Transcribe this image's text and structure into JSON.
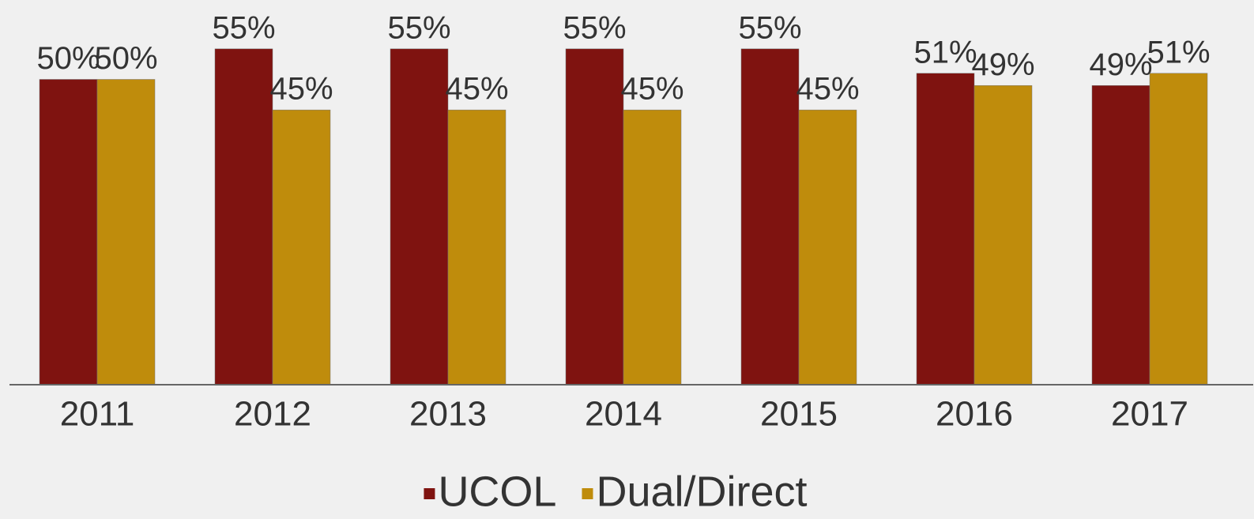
{
  "chart_data": {
    "type": "bar",
    "categories": [
      "2011",
      "2012",
      "2013",
      "2014",
      "2015",
      "2016",
      "2017"
    ],
    "series": [
      {
        "name": "UCOL",
        "color": "#7f1310",
        "values": [
          50,
          55,
          55,
          55,
          55,
          51,
          49
        ],
        "value_labels": [
          "50%",
          "55%",
          "55%",
          "55%",
          "55%",
          "51%",
          "49%"
        ]
      },
      {
        "name": "Dual/Direct",
        "color": "#bf8c0c",
        "values": [
          50,
          45,
          45,
          45,
          45,
          49,
          51
        ],
        "value_labels": [
          "50%",
          "45%",
          "45%",
          "45%",
          "45%",
          "49%",
          "51%"
        ]
      }
    ],
    "ylim": [
      0,
      63
    ],
    "legend": "bottom"
  }
}
